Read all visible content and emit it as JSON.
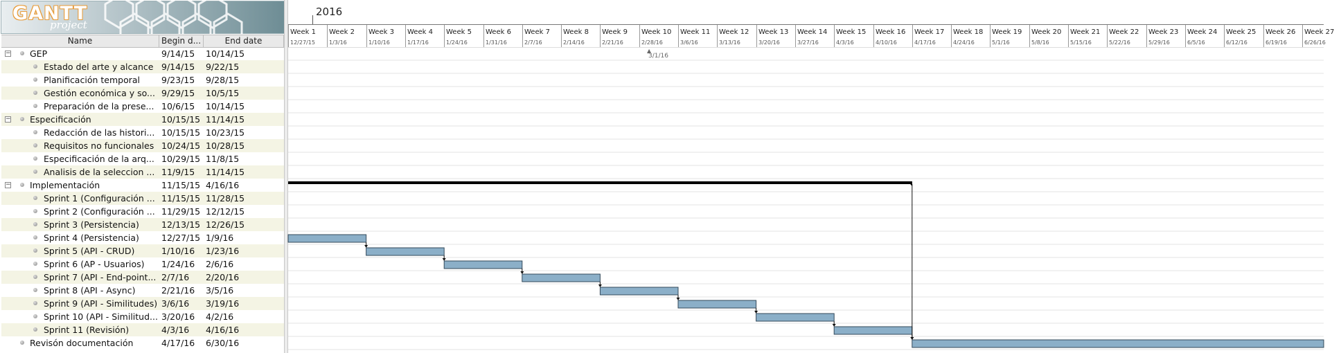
{
  "logo": {
    "title": "GANTT",
    "subtitle": "project"
  },
  "columns": {
    "name": "Name",
    "begin": "Begin d...",
    "end": "End date"
  },
  "timeline": {
    "year": "2016",
    "milestone_date": "3/1/16",
    "weeks": [
      {
        "label": "Week 1",
        "date": "12/27/15"
      },
      {
        "label": "Week 2",
        "date": "1/3/16"
      },
      {
        "label": "Week 3",
        "date": "1/10/16"
      },
      {
        "label": "Week 4",
        "date": "1/17/16"
      },
      {
        "label": "Week 5",
        "date": "1/24/16"
      },
      {
        "label": "Week 6",
        "date": "1/31/16"
      },
      {
        "label": "Week 7",
        "date": "2/7/16"
      },
      {
        "label": "Week 8",
        "date": "2/14/16"
      },
      {
        "label": "Week 9",
        "date": "2/21/16"
      },
      {
        "label": "Week 10",
        "date": "2/28/16"
      },
      {
        "label": "Week 11",
        "date": "3/6/16"
      },
      {
        "label": "Week 12",
        "date": "3/13/16"
      },
      {
        "label": "Week 13",
        "date": "3/20/16"
      },
      {
        "label": "Week 14",
        "date": "3/27/16"
      },
      {
        "label": "Week 15",
        "date": "4/3/16"
      },
      {
        "label": "Week 16",
        "date": "4/10/16"
      },
      {
        "label": "Week 17",
        "date": "4/17/16"
      },
      {
        "label": "Week 18",
        "date": "4/24/16"
      },
      {
        "label": "Week 19",
        "date": "5/1/16"
      },
      {
        "label": "Week 20",
        "date": "5/8/16"
      },
      {
        "label": "Week 21",
        "date": "5/15/16"
      },
      {
        "label": "Week 22",
        "date": "5/22/16"
      },
      {
        "label": "Week 23",
        "date": "5/29/16"
      },
      {
        "label": "Week 24",
        "date": "6/5/16"
      },
      {
        "label": "Week 25",
        "date": "6/12/16"
      },
      {
        "label": "Week 26",
        "date": "6/19/16"
      },
      {
        "label": "Week 27",
        "date": "6/26/16"
      }
    ]
  },
  "tasks": [
    {
      "name": "GEP",
      "begin": "9/14/15",
      "end": "10/14/15",
      "level": 0,
      "group": true
    },
    {
      "name": "Estado del arte y alcance",
      "begin": "9/14/15",
      "end": "9/22/15",
      "level": 1
    },
    {
      "name": "Planificación temporal",
      "begin": "9/23/15",
      "end": "9/28/15",
      "level": 1
    },
    {
      "name": "Gestión económica y so...",
      "begin": "9/29/15",
      "end": "10/5/15",
      "level": 1
    },
    {
      "name": "Preparación de la prese...",
      "begin": "10/6/15",
      "end": "10/14/15",
      "level": 1
    },
    {
      "name": "Especificación",
      "begin": "10/15/15",
      "end": "11/14/15",
      "level": 0,
      "group": true
    },
    {
      "name": "Redacción de las histori...",
      "begin": "10/15/15",
      "end": "10/23/15",
      "level": 1
    },
    {
      "name": "Requisitos no funcionales",
      "begin": "10/24/15",
      "end": "10/28/15",
      "level": 1
    },
    {
      "name": "Especificación de la arq...",
      "begin": "10/29/15",
      "end": "11/8/15",
      "level": 1
    },
    {
      "name": "Analisis de la seleccion ...",
      "begin": "11/9/15",
      "end": "11/14/15",
      "level": 1
    },
    {
      "name": "Implementación",
      "begin": "11/15/15",
      "end": "4/16/16",
      "level": 0,
      "group": true
    },
    {
      "name": "Sprint 1 (Configuración ...",
      "begin": "11/15/15",
      "end": "11/28/15",
      "level": 1
    },
    {
      "name": "Sprint 2 (Configuración ...",
      "begin": "11/29/15",
      "end": "12/12/15",
      "level": 1
    },
    {
      "name": "Sprint 3 (Persistencia)",
      "begin": "12/13/15",
      "end": "12/26/15",
      "level": 1
    },
    {
      "name": "Sprint 4  (Persistencia)",
      "begin": "12/27/15",
      "end": "1/9/16",
      "level": 1
    },
    {
      "name": "Sprint 5 (API -  CRUD)",
      "begin": "1/10/16",
      "end": "1/23/16",
      "level": 1
    },
    {
      "name": "Sprint 6 (AP - Usuarios)",
      "begin": "1/24/16",
      "end": "2/6/16",
      "level": 1
    },
    {
      "name": "Sprint 7 (API - End-point...",
      "begin": "2/7/16",
      "end": "2/20/16",
      "level": 1
    },
    {
      "name": "Sprint 8 (API - Async)",
      "begin": "2/21/16",
      "end": "3/5/16",
      "level": 1
    },
    {
      "name": "Sprint 9 (API - Similitudes)",
      "begin": "3/6/16",
      "end": "3/19/16",
      "level": 1
    },
    {
      "name": "Sprint 10 (API - Similitud...",
      "begin": "3/20/16",
      "end": "4/2/16",
      "level": 1
    },
    {
      "name": "Sprint 11 (Revisión)",
      "begin": "4/3/16",
      "end": "4/16/16",
      "level": 1
    },
    {
      "name": "Revisón documentación",
      "begin": "4/17/16",
      "end": "6/30/16",
      "level": 0
    }
  ],
  "colors": {
    "bar_fill": "#8bafc8",
    "bar_border": "#33495a",
    "row_alt": "#f4f4e4",
    "summary_bar": "#000000"
  }
}
